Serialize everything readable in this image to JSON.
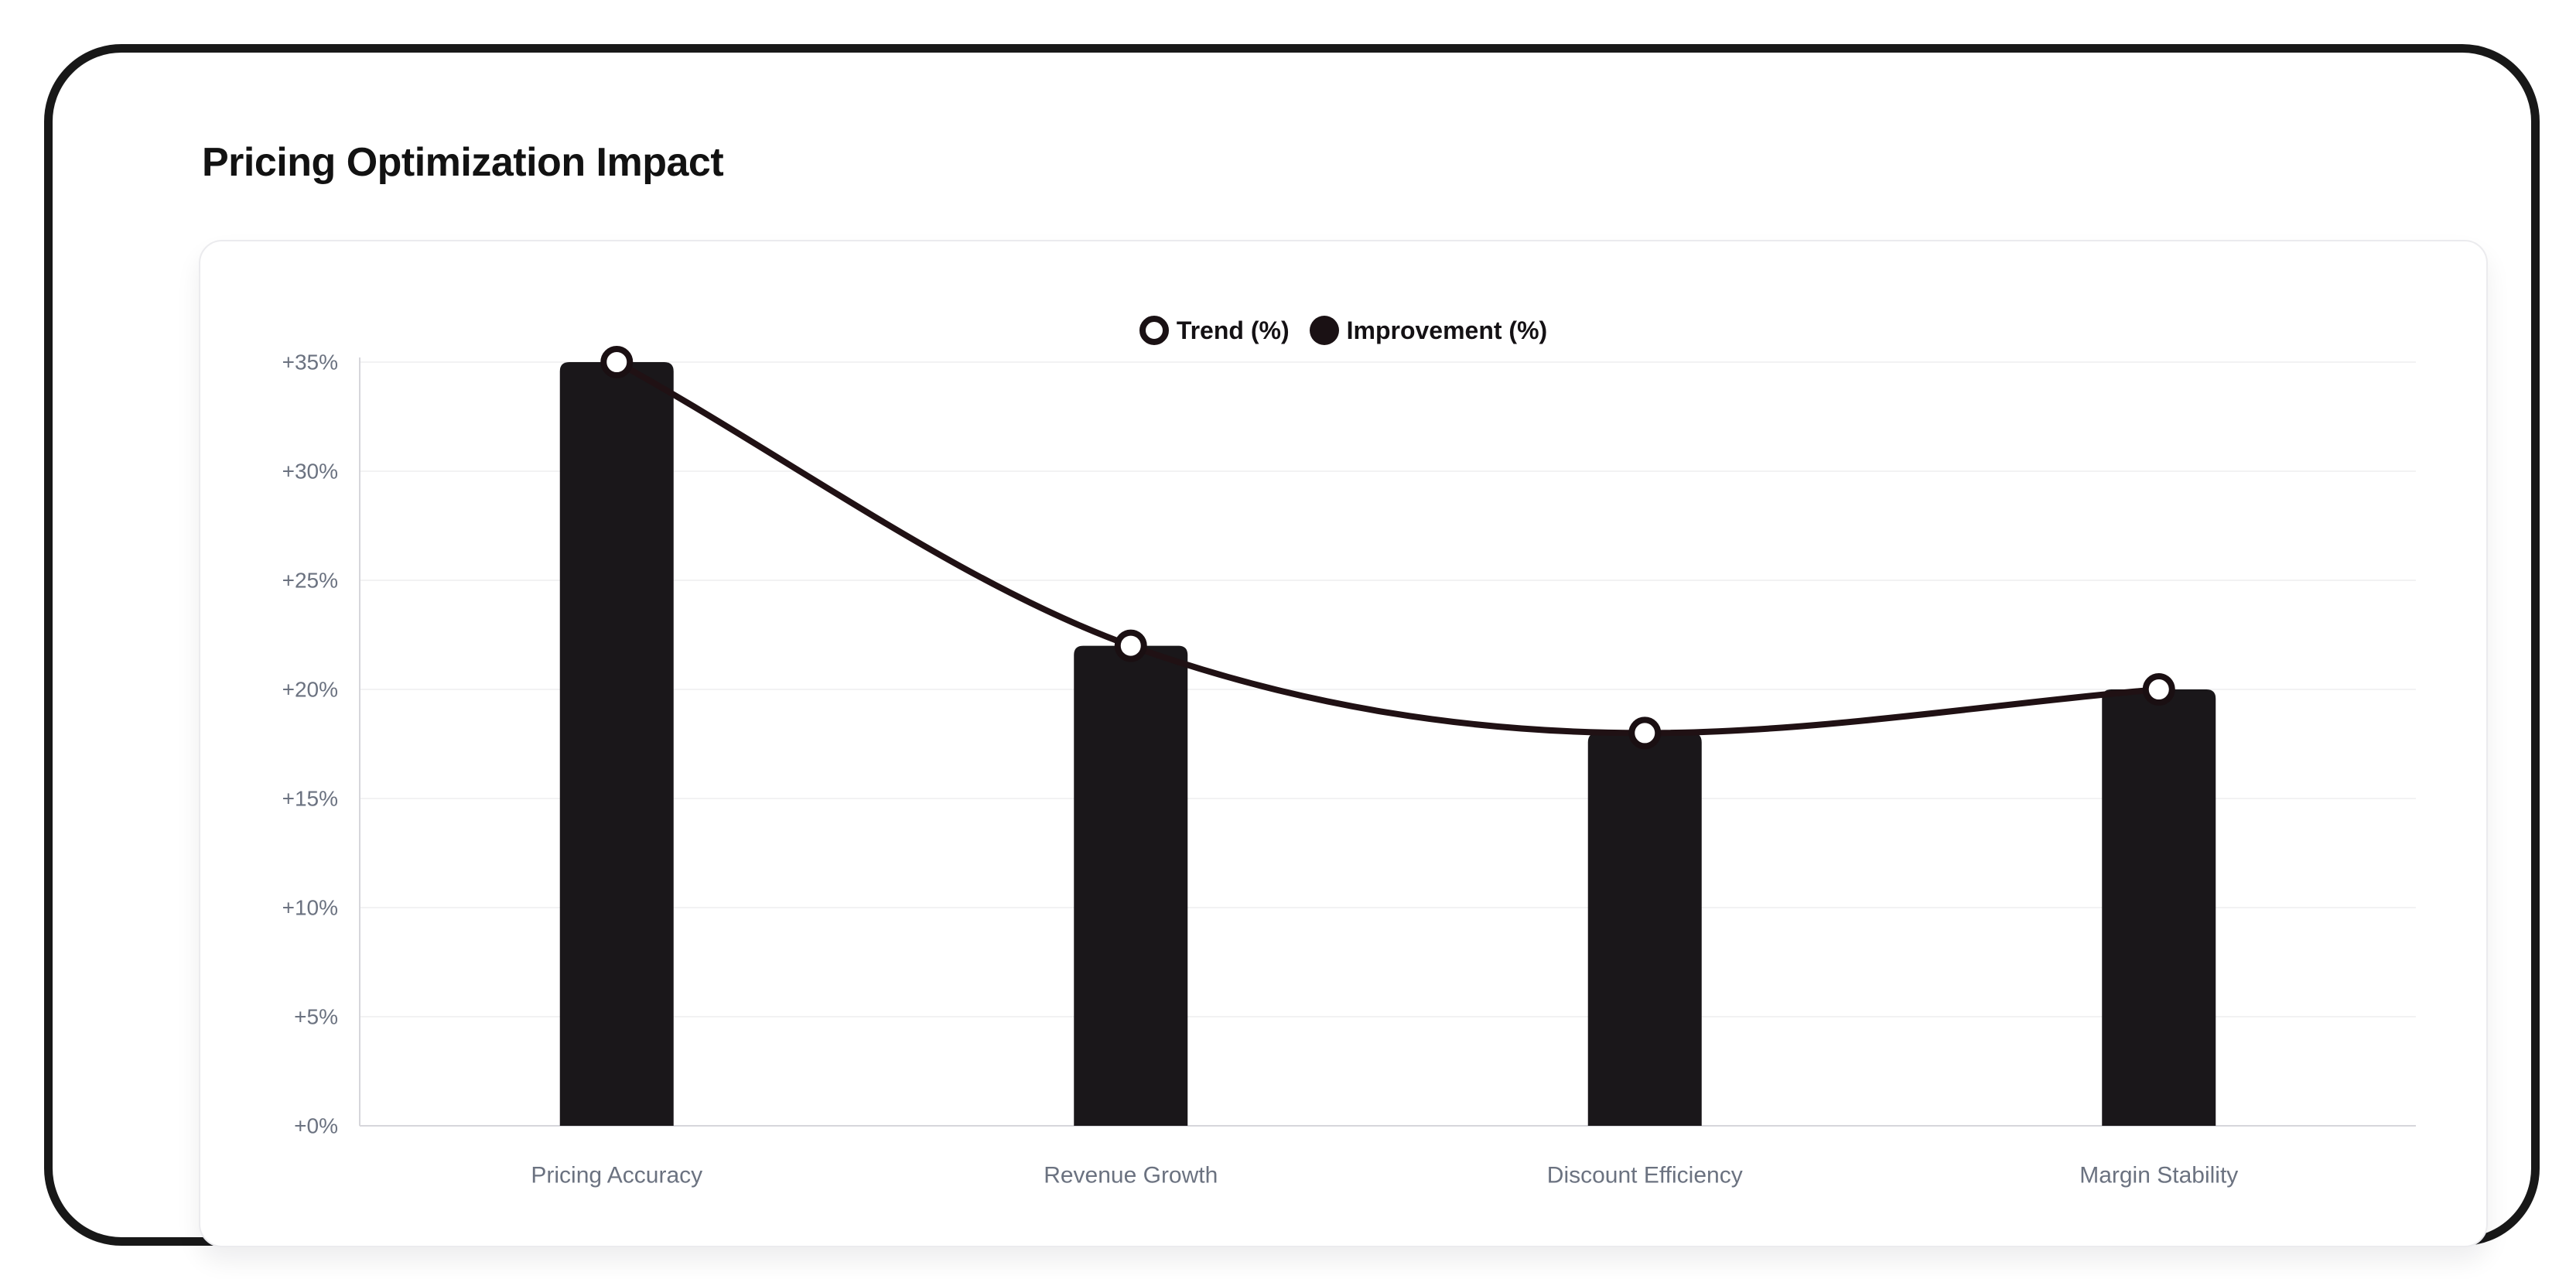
{
  "header": {
    "title": "Pricing Optimization Impact"
  },
  "legend": {
    "items": [
      {
        "label": "Trend (%)",
        "marker": "ring"
      },
      {
        "label": "Improvement (%)",
        "marker": "solid"
      }
    ]
  },
  "chart_data": {
    "type": "bar+line",
    "title": "Pricing Optimization Impact",
    "categories": [
      "Pricing Accuracy",
      "Revenue Growth",
      "Discount Efficiency",
      "Margin Stability"
    ],
    "series": [
      {
        "name": "Improvement (%)",
        "type": "bar",
        "values": [
          35,
          22,
          18,
          20
        ]
      },
      {
        "name": "Trend (%)",
        "type": "line",
        "values": [
          35,
          22,
          18,
          20
        ]
      }
    ],
    "xlabel": "",
    "ylabel": "",
    "ylim": [
      0,
      35
    ],
    "yticks": [
      {
        "value": 0,
        "label": "+0%"
      },
      {
        "value": 5,
        "label": "+5%"
      },
      {
        "value": 10,
        "label": "+10%"
      },
      {
        "value": 15,
        "label": "+15%"
      },
      {
        "value": 20,
        "label": "+20%"
      },
      {
        "value": 25,
        "label": "+25%"
      },
      {
        "value": 30,
        "label": "+30%"
      },
      {
        "value": 35,
        "label": "+35%"
      }
    ],
    "grid": true,
    "legend_position": "top-center",
    "line_shape": "monotone",
    "colors": {
      "bar": "#1a171a",
      "line": "#201114",
      "marker_fill": "#ffffff",
      "marker_stroke": "#1a0f12",
      "grid": "#f2f2f3",
      "axis": "#d6d6db",
      "tick_text": "#6b7280",
      "title_text": "#121212",
      "frame": "#181818"
    }
  }
}
